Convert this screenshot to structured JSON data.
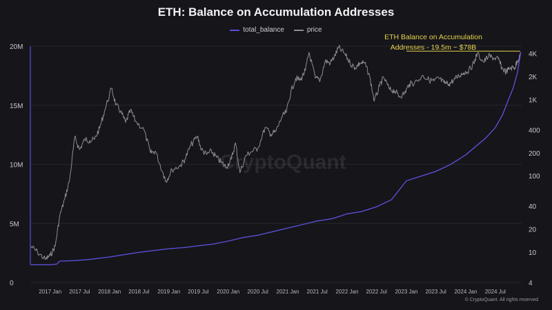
{
  "chart_data": {
    "type": "line",
    "title": "ETH: Balance on Accumulation Addresses",
    "legend_position": "top-center",
    "grid": true,
    "series": [
      {
        "name": "total_balance",
        "axis": "left",
        "color": "#5b4fd6",
        "points": [
          [
            "2016-09-01",
            1500000
          ],
          [
            "2017-01-01",
            1500000
          ],
          [
            "2017-02-10",
            1550000
          ],
          [
            "2017-03-01",
            1800000
          ],
          [
            "2017-06-01",
            1850000
          ],
          [
            "2017-09-01",
            1950000
          ],
          [
            "2018-01-01",
            2150000
          ],
          [
            "2018-04-01",
            2350000
          ],
          [
            "2018-07-01",
            2550000
          ],
          [
            "2018-10-01",
            2700000
          ],
          [
            "2019-01-01",
            2850000
          ],
          [
            "2019-04-01",
            2950000
          ],
          [
            "2019-07-01",
            3100000
          ],
          [
            "2019-10-01",
            3250000
          ],
          [
            "2020-01-01",
            3500000
          ],
          [
            "2020-04-01",
            3800000
          ],
          [
            "2020-07-01",
            4000000
          ],
          [
            "2020-10-01",
            4300000
          ],
          [
            "2021-01-01",
            4600000
          ],
          [
            "2021-04-01",
            4900000
          ],
          [
            "2021-07-01",
            5200000
          ],
          [
            "2021-10-01",
            5400000
          ],
          [
            "2022-01-01",
            5800000
          ],
          [
            "2022-04-01",
            6000000
          ],
          [
            "2022-07-01",
            6400000
          ],
          [
            "2022-10-01",
            7000000
          ],
          [
            "2023-01-01",
            8600000
          ],
          [
            "2023-04-01",
            9000000
          ],
          [
            "2023-07-01",
            9400000
          ],
          [
            "2023-10-01",
            10000000
          ],
          [
            "2024-01-01",
            10800000
          ],
          [
            "2024-03-01",
            11500000
          ],
          [
            "2024-05-01",
            12200000
          ],
          [
            "2024-07-01",
            13100000
          ],
          [
            "2024-08-15",
            14200000
          ],
          [
            "2024-09-15",
            15300000
          ],
          [
            "2024-10-20",
            16500000
          ],
          [
            "2024-11-15",
            17800000
          ],
          [
            "2024-12-05",
            19500000
          ]
        ]
      },
      {
        "name": "price",
        "axis": "right",
        "color": "#8e8e95",
        "points": [
          [
            "2016-09-01",
            12
          ],
          [
            "2016-10-15",
            10
          ],
          [
            "2016-12-01",
            8
          ],
          [
            "2017-01-01",
            9
          ],
          [
            "2017-02-01",
            12
          ],
          [
            "2017-03-01",
            30
          ],
          [
            "2017-04-01",
            50
          ],
          [
            "2017-05-01",
            90
          ],
          [
            "2017-06-01",
            320
          ],
          [
            "2017-07-01",
            220
          ],
          [
            "2017-08-01",
            300
          ],
          [
            "2017-09-01",
            290
          ],
          [
            "2017-10-01",
            300
          ],
          [
            "2017-11-01",
            420
          ],
          [
            "2017-12-01",
            700
          ],
          [
            "2018-01-13",
            1400
          ],
          [
            "2018-02-10",
            850
          ],
          [
            "2018-03-10",
            700
          ],
          [
            "2018-04-10",
            500
          ],
          [
            "2018-05-10",
            720
          ],
          [
            "2018-06-10",
            520
          ],
          [
            "2018-08-01",
            400
          ],
          [
            "2018-09-10",
            200
          ],
          [
            "2018-10-10",
            210
          ],
          [
            "2018-11-25",
            110
          ],
          [
            "2018-12-15",
            85
          ],
          [
            "2019-01-20",
            120
          ],
          [
            "2019-03-10",
            135
          ],
          [
            "2019-04-10",
            165
          ],
          [
            "2019-05-15",
            250
          ],
          [
            "2019-06-26",
            330
          ],
          [
            "2019-07-20",
            220
          ],
          [
            "2019-08-20",
            190
          ],
          [
            "2019-09-20",
            210
          ],
          [
            "2019-10-20",
            175
          ],
          [
            "2019-11-20",
            150
          ],
          [
            "2019-12-20",
            130
          ],
          [
            "2020-01-20",
            165
          ],
          [
            "2020-02-15",
            270
          ],
          [
            "2020-03-13",
            110
          ],
          [
            "2020-04-20",
            185
          ],
          [
            "2020-05-20",
            205
          ],
          [
            "2020-07-01",
            230
          ],
          [
            "2020-08-15",
            430
          ],
          [
            "2020-09-20",
            350
          ],
          [
            "2020-10-20",
            380
          ],
          [
            "2020-11-25",
            580
          ],
          [
            "2020-12-25",
            700
          ],
          [
            "2021-01-20",
            1250
          ],
          [
            "2021-02-20",
            1900
          ],
          [
            "2021-03-20",
            1800
          ],
          [
            "2021-04-20",
            2400
          ],
          [
            "2021-05-12",
            4150
          ],
          [
            "2021-06-20",
            1900
          ],
          [
            "2021-07-20",
            1800
          ],
          [
            "2021-08-20",
            3200
          ],
          [
            "2021-09-20",
            3000
          ],
          [
            "2021-10-20",
            3800
          ],
          [
            "2021-11-10",
            4800
          ],
          [
            "2021-12-20",
            3900
          ],
          [
            "2022-01-20",
            3000
          ],
          [
            "2022-02-20",
            2600
          ],
          [
            "2022-03-20",
            3000
          ],
          [
            "2022-04-20",
            3000
          ],
          [
            "2022-05-20",
            2000
          ],
          [
            "2022-06-18",
            950
          ],
          [
            "2022-07-20",
            1500
          ],
          [
            "2022-08-14",
            1950
          ],
          [
            "2022-09-20",
            1350
          ],
          [
            "2022-10-20",
            1300
          ],
          [
            "2022-11-20",
            1100
          ],
          [
            "2022-12-20",
            1200
          ],
          [
            "2023-01-20",
            1600
          ],
          [
            "2023-02-20",
            1650
          ],
          [
            "2023-04-15",
            2050
          ],
          [
            "2023-05-20",
            1800
          ],
          [
            "2023-06-20",
            1750
          ],
          [
            "2023-07-20",
            1900
          ],
          [
            "2023-08-20",
            1650
          ],
          [
            "2023-09-20",
            1600
          ],
          [
            "2023-10-20",
            1800
          ],
          [
            "2023-11-20",
            2050
          ],
          [
            "2023-12-20",
            2250
          ],
          [
            "2024-01-20",
            2400
          ],
          [
            "2024-02-20",
            3000
          ],
          [
            "2024-03-12",
            4000
          ],
          [
            "2024-04-20",
            3100
          ],
          [
            "2024-05-20",
            3700
          ],
          [
            "2024-06-20",
            3500
          ],
          [
            "2024-07-20",
            3400
          ],
          [
            "2024-08-10",
            2600
          ],
          [
            "2024-09-06",
            2300
          ],
          [
            "2024-10-01",
            2600
          ],
          [
            "2024-10-30",
            2600
          ],
          [
            "2024-11-12",
            3200
          ],
          [
            "2024-12-05",
            3900
          ]
        ]
      }
    ],
    "x_axis": {
      "type": "date",
      "range": [
        "2016-09-01",
        "2024-12-10"
      ],
      "tick_labels": [
        [
          "2017-01-01",
          "2017 Jan"
        ],
        [
          "2017-07-01",
          "2017 Jul"
        ],
        [
          "2018-01-01",
          "2018 Jan"
        ],
        [
          "2018-07-01",
          "2018 Jul"
        ],
        [
          "2019-01-01",
          "2019 Jan"
        ],
        [
          "2019-07-01",
          "2019 Jul"
        ],
        [
          "2020-01-01",
          "2020 Jan"
        ],
        [
          "2020-07-01",
          "2020 Jul"
        ],
        [
          "2021-01-01",
          "2021 Jan"
        ],
        [
          "2021-07-01",
          "2021 Jul"
        ],
        [
          "2022-01-01",
          "2022 Jan"
        ],
        [
          "2022-07-01",
          "2022 Jul"
        ],
        [
          "2023-01-01",
          "2023 Jan"
        ],
        [
          "2023-07-01",
          "2023 Jul"
        ],
        [
          "2024-01-01",
          "2024 Jan"
        ],
        [
          "2024-07-01",
          "2024 Jul"
        ]
      ]
    },
    "y_left": {
      "type": "linear",
      "range": [
        0,
        20000000
      ],
      "ticks": [
        [
          0,
          "0"
        ],
        [
          5000000,
          "5M"
        ],
        [
          10000000,
          "10M"
        ],
        [
          15000000,
          "15M"
        ],
        [
          20000000,
          "20M"
        ]
      ]
    },
    "y_right": {
      "type": "log",
      "range": [
        4,
        5000
      ],
      "ticks": [
        [
          4,
          "4"
        ],
        [
          10,
          "10"
        ],
        [
          20,
          "20"
        ],
        [
          40,
          "40"
        ],
        [
          100,
          "100"
        ],
        [
          200,
          "200"
        ],
        [
          400,
          "400"
        ],
        [
          1000,
          "1K"
        ],
        [
          2000,
          "2K"
        ],
        [
          4000,
          "4K"
        ]
      ]
    },
    "annotation": {
      "lines": [
        "ETH Balance on Accumulation",
        "Addresses - 19.5m ~ $78B"
      ],
      "color": "#e8d44d",
      "underline_range": [
        "2023-01-01",
        "2024-12-01"
      ],
      "underline_value": 4300
    },
    "watermark": "CryptoQuant"
  },
  "footer": {
    "credit": "© CryptoQuant. All rights reserved"
  }
}
